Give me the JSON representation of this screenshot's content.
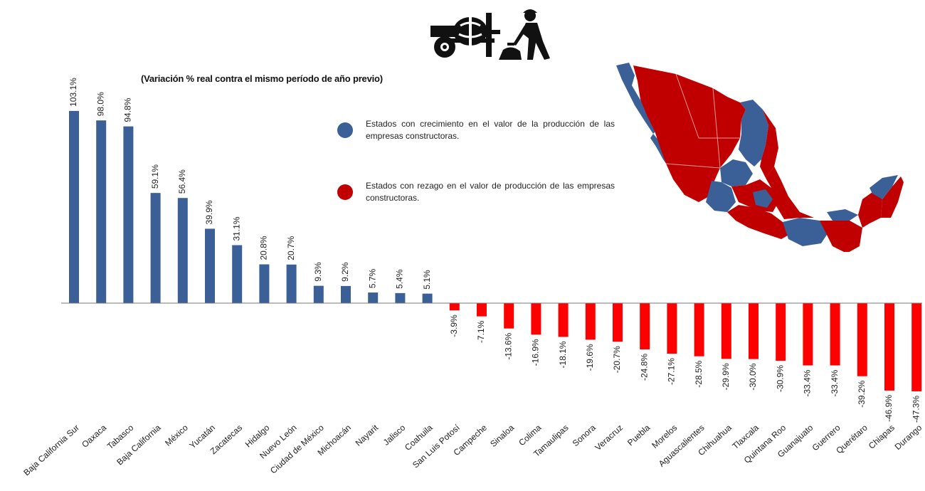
{
  "chart_data": {
    "type": "bar",
    "title": "",
    "subtitle": "(Variación % real contra el mismo período de año previo)",
    "xlabel": "",
    "ylabel": "",
    "ylim": [
      -50,
      110
    ],
    "grid": false,
    "categories": [
      "Baja California Sur",
      "Oaxaca",
      "Tabasco",
      "Baja California",
      "México",
      "Yucatán",
      "Zacatecas",
      "Hidalgo",
      "Nuevo León",
      "Ciudad de México",
      "Michoacán",
      "Nayarit",
      "Jalisco",
      "Coahuila",
      "San Luis Potosí",
      "Campeche",
      "Sinaloa",
      "Colima",
      "Tamaulipas",
      "Sonora",
      "Veracruz",
      "Puebla",
      "Morelos",
      "Aguascalientes",
      "Chihuahua",
      "Tlaxcala",
      "Quintana Roo",
      "Guanajuato",
      "Guerrero",
      "Querétaro",
      "Chiapas",
      "Durango"
    ],
    "values": [
      103.1,
      98.0,
      94.8,
      59.1,
      56.4,
      39.9,
      31.1,
      20.8,
      20.7,
      9.3,
      9.2,
      5.7,
      5.4,
      5.1,
      -3.9,
      -7.1,
      -13.6,
      -16.9,
      -18.1,
      -19.6,
      -20.7,
      -24.8,
      -27.1,
      -28.5,
      -29.9,
      -30.0,
      -30.9,
      -33.4,
      -33.4,
      -39.2,
      -46.9,
      -47.3
    ],
    "labels": [
      "103.1%",
      "98.0%",
      "94.8%",
      "59.1%",
      "56.4%",
      "39.9%",
      "31.1%",
      "20.8%",
      "20.7%",
      "9.3%",
      "9.2%",
      "5.7%",
      "5.4%",
      "5.1%",
      "-3.9%",
      "-7.1%",
      "-13.6%",
      "-16.9%",
      "-18.1%",
      "-19.6%",
      "-20.7%",
      "-24.8%",
      "-27.1%",
      "-28.5%",
      "-29.9%",
      "-30.0%",
      "-30.9%",
      "-33.4%",
      "-33.4%",
      "-39.2%",
      "-46.9%",
      "-47.3%"
    ],
    "colors": {
      "positive": "#3a6097",
      "negative": "#ff0000"
    }
  },
  "legend": {
    "items": [
      {
        "text": "Estados con crecimiento en el valor de la producción de las empresas constructoras.",
        "color": "#3a6097"
      },
      {
        "text": "Estados con rezago en el valor de producción de las empresas constructoras.",
        "color": "#c00000"
      }
    ]
  },
  "map": {
    "growth_color": "#3a6097",
    "lag_color": "#c00000"
  },
  "icon": "construction-worker-cement-mixer-icon"
}
